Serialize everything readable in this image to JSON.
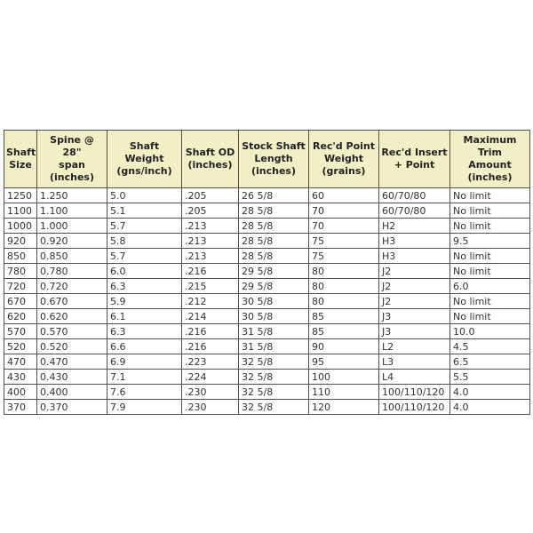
{
  "page": {
    "background_color": "#ffffff"
  },
  "table_style": {
    "header_background": "#f2efc7",
    "border_color": "#4f4f4f",
    "header_text_color": "#222222",
    "body_text_color": "#333333"
  },
  "table": {
    "headers_display": [
      "Shaft\nSize",
      "Spine @ 28\"\nspan\n(inches)",
      "Shaft Weight\n(gns/inch)",
      "Shaft OD\n(inches)",
      "Stock Shaft\nLength\n(inches)",
      "Rec'd Point\nWeight\n(grains)",
      "Rec'd Insert\n+ Point",
      "Maximum Trim\nAmount\n(inches)"
    ]
  },
  "chart_data": {
    "type": "table",
    "title": "",
    "columns": [
      "Shaft Size",
      "Spine @ 28\" span (inches)",
      "Shaft Weight (gns/inch)",
      "Shaft OD (inches)",
      "Stock Shaft Length (inches)",
      "Rec'd Point Weight (grains)",
      "Rec'd Insert + Point",
      "Maximum Trim Amount (inches)"
    ],
    "rows": [
      [
        "1250",
        "1.250",
        "5.0",
        ".205",
        "26 5/8",
        "60",
        "60/70/80",
        "No limit"
      ],
      [
        "1100",
        "1.100",
        "5.1",
        ".205",
        "28 5/8",
        "70",
        "60/70/80",
        "No limit"
      ],
      [
        "1000",
        "1.000",
        "5.7",
        ".213",
        "28 5/8",
        "70",
        "H2",
        "No limit"
      ],
      [
        "920",
        "0.920",
        "5.8",
        ".213",
        "28 5/8",
        "75",
        "H3",
        "9.5"
      ],
      [
        "850",
        "0.850",
        "5.7",
        ".213",
        "28 5/8",
        "75",
        "H3",
        "No limit"
      ],
      [
        "780",
        "0.780",
        "6.0",
        ".216",
        "29 5/8",
        "80",
        "J2",
        "No limit"
      ],
      [
        "720",
        "0.720",
        "6.3",
        ".215",
        "29 5/8",
        "80",
        "J2",
        "6.0"
      ],
      [
        "670",
        "0.670",
        "5.9",
        ".212",
        "30 5/8",
        "80",
        "J2",
        "No limit"
      ],
      [
        "620",
        "0.620",
        "6.1",
        ".214",
        "30 5/8",
        "85",
        "J3",
        "No limit"
      ],
      [
        "570",
        "0.570",
        "6.3",
        ".216",
        "31 5/8",
        "85",
        "J3",
        "10.0"
      ],
      [
        "520",
        "0.520",
        "6.6",
        ".216",
        "31 5/8",
        "90",
        "L2",
        "4.5"
      ],
      [
        "470",
        "0.470",
        "6.9",
        ".223",
        "32 5/8",
        "95",
        "L3",
        "6.5"
      ],
      [
        "430",
        "0.430",
        "7.1",
        ".224",
        "32 5/8",
        "100",
        "L4",
        "5.5"
      ],
      [
        "400",
        "0.400",
        "7.6",
        ".230",
        "32 5/8",
        "110",
        "100/110/120",
        "4.0"
      ],
      [
        "370",
        "0.370",
        "7.9",
        ".230",
        "32 5/8",
        "120",
        "100/110/120",
        "4.0"
      ]
    ]
  }
}
